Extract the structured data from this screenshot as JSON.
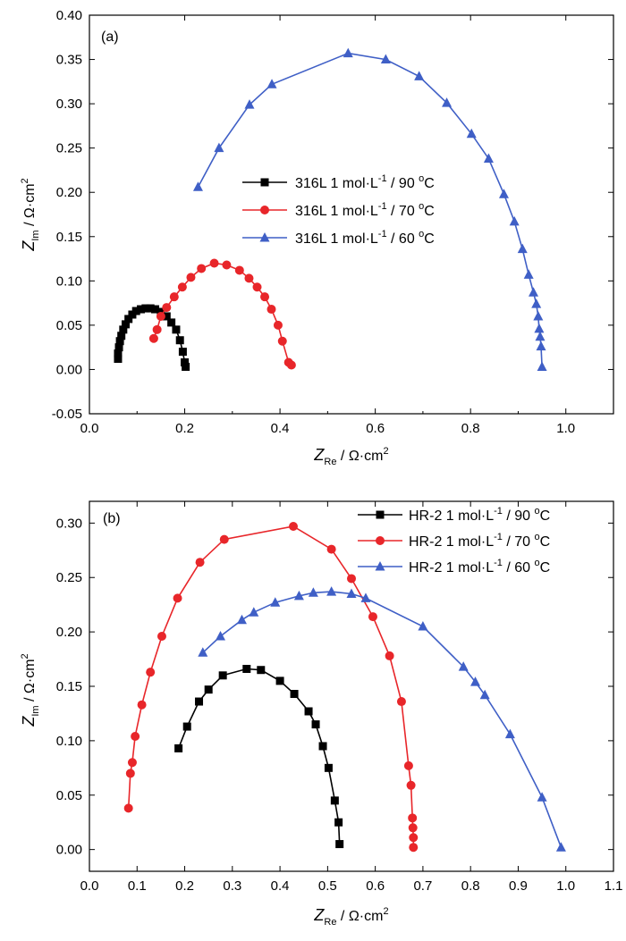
{
  "chart_data": [
    {
      "type": "line",
      "panel_label": "(a)",
      "xlabel": "Z_Re / Ω·cm^2",
      "ylabel": "Z_Im / Ω·cm^2",
      "xlim": [
        0.0,
        1.1
      ],
      "ylim": [
        -0.05,
        0.4
      ],
      "xticks": [
        "0.0",
        "0.2",
        "0.4",
        "0.6",
        "0.8",
        "1.0"
      ],
      "yticks": [
        "-0.05",
        "0.00",
        "0.05",
        "0.10",
        "0.15",
        "0.20",
        "0.25",
        "0.30",
        "0.35",
        "0.40"
      ],
      "legend": {
        "position": "center"
      },
      "series": [
        {
          "name": "316L 1 mol·L-1 / 90 °C",
          "label_parts": {
            "pre": "316L 1 mol·L",
            "sup1": "-1",
            "mid": " / 90 ",
            "sup2": "o",
            "post": "C"
          },
          "color": "#000000",
          "marker": "square",
          "x": [
            0.06,
            0.06,
            0.062,
            0.064,
            0.067,
            0.071,
            0.076,
            0.082,
            0.09,
            0.098,
            0.108,
            0.118,
            0.128,
            0.138,
            0.15,
            0.162,
            0.172,
            0.182,
            0.19,
            0.196,
            0.2,
            0.202
          ],
          "y": [
            0.012,
            0.018,
            0.025,
            0.032,
            0.038,
            0.045,
            0.051,
            0.057,
            0.062,
            0.066,
            0.068,
            0.069,
            0.069,
            0.068,
            0.065,
            0.06,
            0.053,
            0.045,
            0.033,
            0.02,
            0.008,
            0.003
          ]
        },
        {
          "name": "316L 1 mol·L-1 / 70 °C",
          "label_parts": {
            "pre": "316L 1 mol·L",
            "sup1": "-1",
            "mid": " / 70 ",
            "sup2": "o",
            "post": "C"
          },
          "color": "#e8262a",
          "marker": "circle",
          "x": [
            0.135,
            0.142,
            0.15,
            0.162,
            0.178,
            0.195,
            0.213,
            0.235,
            0.262,
            0.288,
            0.315,
            0.335,
            0.352,
            0.368,
            0.382,
            0.396,
            0.405,
            0.418,
            0.424
          ],
          "y": [
            0.035,
            0.045,
            0.06,
            0.07,
            0.082,
            0.093,
            0.104,
            0.114,
            0.12,
            0.118,
            0.112,
            0.103,
            0.093,
            0.082,
            0.068,
            0.05,
            0.032,
            0.008,
            0.005
          ]
        },
        {
          "name": "316L 1 mol·L-1 / 60 °C",
          "label_parts": {
            "pre": "316L 1 mol·L",
            "sup1": "-1",
            "mid": " / 60 ",
            "sup2": "o",
            "post": "C"
          },
          "color": "#3f5fc6",
          "marker": "triangle",
          "x": [
            0.228,
            0.272,
            0.336,
            0.383,
            0.543,
            0.622,
            0.692,
            0.75,
            0.802,
            0.838,
            0.87,
            0.892,
            0.909,
            0.922,
            0.932,
            0.938,
            0.942,
            0.944,
            0.946,
            0.948,
            0.95
          ],
          "y": [
            0.206,
            0.25,
            0.299,
            0.322,
            0.357,
            0.35,
            0.331,
            0.301,
            0.266,
            0.238,
            0.198,
            0.167,
            0.136,
            0.107,
            0.087,
            0.074,
            0.06,
            0.046,
            0.037,
            0.026,
            0.003
          ]
        }
      ]
    },
    {
      "type": "line",
      "panel_label": "(b)",
      "xlabel": "Z_Re / Ω·cm^2",
      "ylabel": "Z_Im / Ω·cm^2",
      "xlim": [
        0.0,
        1.1
      ],
      "ylim": [
        -0.02,
        0.32
      ],
      "xticks": [
        "0.0",
        "0.1",
        "0.2",
        "0.3",
        "0.4",
        "0.5",
        "0.6",
        "0.7",
        "0.8",
        "0.9",
        "1.0",
        "1.1"
      ],
      "yticks": [
        "0.00",
        "0.05",
        "0.10",
        "0.15",
        "0.20",
        "0.25",
        "0.30"
      ],
      "legend": {
        "position": "top-right"
      },
      "series": [
        {
          "name": "HR-2 1 mol·L-1 / 90 °C",
          "label_parts": {
            "pre": "HR-2 1 mol·L",
            "sup1": "-1",
            "mid": " / 90 ",
            "sup2": "o",
            "post": "C"
          },
          "color": "#000000",
          "marker": "square",
          "x": [
            0.187,
            0.205,
            0.23,
            0.25,
            0.28,
            0.33,
            0.36,
            0.4,
            0.43,
            0.46,
            0.475,
            0.49,
            0.502,
            0.515,
            0.523,
            0.525
          ],
          "y": [
            0.093,
            0.113,
            0.136,
            0.147,
            0.16,
            0.166,
            0.165,
            0.155,
            0.143,
            0.127,
            0.115,
            0.095,
            0.075,
            0.045,
            0.025,
            0.005
          ]
        },
        {
          "name": "HR-2 1 mol·L-1 / 70 °C",
          "label_parts": {
            "pre": "HR-2 1 mol·L",
            "sup1": "-1",
            "mid": " / 70 ",
            "sup2": "o",
            "post": "C"
          },
          "color": "#e8262a",
          "marker": "circle",
          "x": [
            0.082,
            0.086,
            0.09,
            0.096,
            0.11,
            0.128,
            0.152,
            0.185,
            0.232,
            0.283,
            0.428,
            0.508,
            0.55,
            0.595,
            0.63,
            0.655,
            0.67,
            0.675,
            0.678,
            0.679,
            0.68,
            0.68
          ],
          "y": [
            0.038,
            0.07,
            0.08,
            0.104,
            0.133,
            0.163,
            0.196,
            0.231,
            0.264,
            0.285,
            0.297,
            0.276,
            0.249,
            0.214,
            0.178,
            0.136,
            0.077,
            0.059,
            0.029,
            0.02,
            0.011,
            0.002
          ]
        },
        {
          "name": "HR-2 1 mol·L-1 / 60 °C",
          "label_parts": {
            "pre": "HR-2 1 mol·L",
            "sup1": "-1",
            "mid": " / 60 ",
            "sup2": "o",
            "post": "C"
          },
          "color": "#3f5fc6",
          "marker": "triangle",
          "x": [
            0.238,
            0.275,
            0.32,
            0.345,
            0.39,
            0.44,
            0.47,
            0.508,
            0.55,
            0.58,
            0.7,
            0.785,
            0.81,
            0.83,
            0.883,
            0.95,
            0.99
          ],
          "y": [
            0.181,
            0.196,
            0.211,
            0.218,
            0.227,
            0.233,
            0.236,
            0.237,
            0.235,
            0.231,
            0.205,
            0.168,
            0.154,
            0.142,
            0.106,
            0.048,
            0.002
          ]
        }
      ]
    }
  ]
}
